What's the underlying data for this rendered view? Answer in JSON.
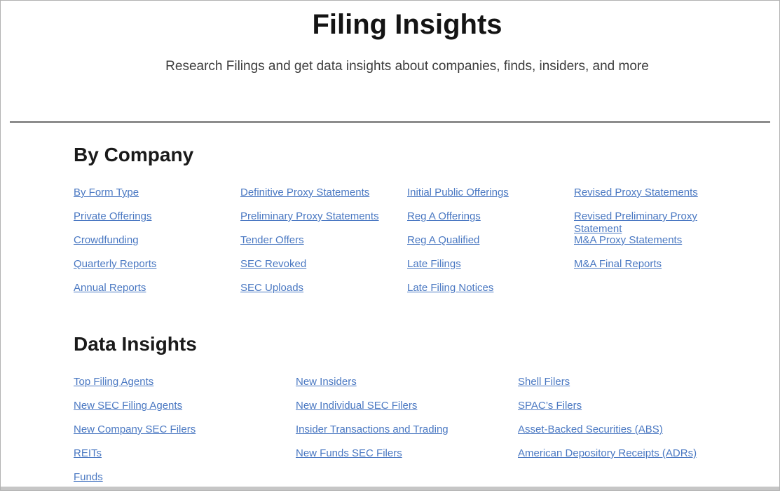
{
  "page": {
    "title": "Filing Insights",
    "subtitle": "Research Filings and get data insights about companies, finds, insiders, and more"
  },
  "sections": [
    {
      "heading": "By Company",
      "columns": [
        [
          "By Form Type",
          "Private Offerings",
          "Crowdfunding",
          "Quarterly Reports",
          "Annual Reports"
        ],
        [
          "Definitive Proxy Statements",
          "Preliminary Proxy Statements",
          "Tender Offers",
          "SEC Revoked",
          "SEC Uploads"
        ],
        [
          "Initial Public Offerings",
          "Reg A Offerings",
          "Reg A Qualified",
          "Late Filings",
          "Late Filing Notices"
        ],
        [
          "Revised Proxy Statements",
          "Revised Preliminary Proxy Statement",
          "M&A Proxy Statements",
          "M&A Final Reports"
        ]
      ]
    },
    {
      "heading": "Data Insights",
      "columns": [
        [
          "Top Filing Agents",
          "New SEC Filing Agents",
          "New Company SEC Filers",
          "REITs",
          "Funds"
        ],
        [
          "New Insiders",
          "New Individual SEC Filers",
          "Insider Transactions and Trading",
          "New Funds SEC Filers"
        ],
        [
          "Shell Filers",
          "SPAC’s Filers",
          "Asset-Backed Securities (ABS)",
          "American Depository Receipts (ADRs)"
        ]
      ]
    }
  ],
  "colors": {
    "link": "#4a78c2",
    "divider": "#6e6e6e",
    "title": "#141414",
    "subtitle_text": "#3d3d3d",
    "page_border": "#b2b2b2",
    "bottom_bar": "#c6c6c6"
  }
}
